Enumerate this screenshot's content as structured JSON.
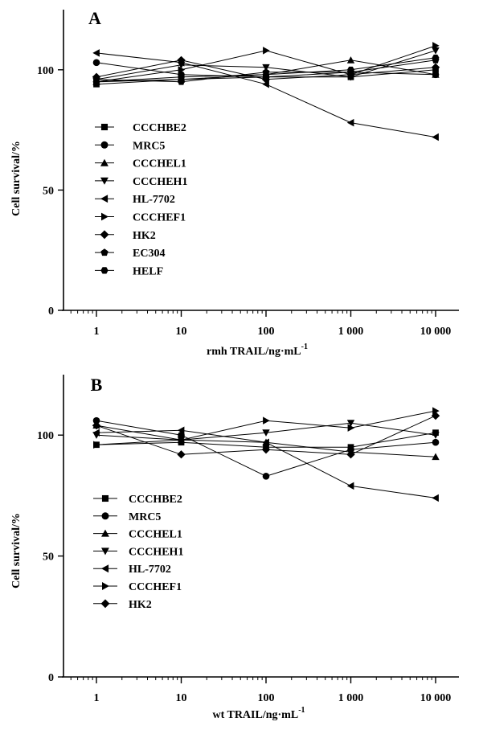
{
  "chart_data": [
    {
      "type": "line",
      "panel_label": "A",
      "xlabel": "rmh TRAIL/ng·mL",
      "xlabel_sup": "-1",
      "ylabel": "Cell survival/%",
      "xscale": "log",
      "x": [
        1,
        10,
        100,
        1000,
        10000
      ],
      "x_tick_labels": [
        "1",
        "10",
        "100",
        "1 000",
        "10 000"
      ],
      "ylim": [
        0,
        125
      ],
      "y_ticks": [
        0,
        50,
        100
      ],
      "grid": false,
      "legend_position": "left-middle",
      "series": [
        {
          "name": "CCCHBE2",
          "marker": "square",
          "values": [
            94,
            96,
            97,
            97,
            100
          ]
        },
        {
          "name": "MRC5",
          "marker": "circle",
          "values": [
            103,
            98,
            97,
            99,
            98
          ]
        },
        {
          "name": "CCCHEL1",
          "marker": "triangle-up",
          "values": [
            95,
            96,
            98,
            104,
            98
          ]
        },
        {
          "name": "CCCHEH1",
          "marker": "triangle-down",
          "values": [
            96,
            102,
            101,
            97,
            108
          ]
        },
        {
          "name": "HL-7702",
          "marker": "triangle-left",
          "values": [
            107,
            103,
            94,
            78,
            72
          ]
        },
        {
          "name": "CCCHEF1",
          "marker": "triangle-right",
          "values": [
            95,
            100,
            108,
            98,
            110
          ]
        },
        {
          "name": "HK2",
          "marker": "diamond",
          "values": [
            97,
            104,
            96,
            98,
            101
          ]
        },
        {
          "name": "EC304",
          "marker": "pentagon",
          "values": [
            96,
            95,
            99,
            99,
            104
          ]
        },
        {
          "name": "HELF",
          "marker": "hexagon",
          "values": [
            95,
            97,
            98,
            100,
            105
          ]
        }
      ]
    },
    {
      "type": "line",
      "panel_label": "B",
      "xlabel": "wt TRAIL/ng·mL",
      "xlabel_sup": "-1",
      "ylabel": "Cell survival/%",
      "xscale": "log",
      "x": [
        1,
        10,
        100,
        1000,
        10000
      ],
      "x_tick_labels": [
        "1",
        "10",
        "100",
        "1 000",
        "10 000"
      ],
      "ylim": [
        0,
        125
      ],
      "y_ticks": [
        0,
        50,
        100
      ],
      "grid": false,
      "legend_position": "left-middle",
      "series": [
        {
          "name": "CCCHBE2",
          "marker": "square",
          "values": [
            96,
            97,
            95,
            95,
            101
          ]
        },
        {
          "name": "MRC5",
          "marker": "circle",
          "values": [
            106,
            100,
            83,
            94,
            97
          ]
        },
        {
          "name": "CCCHEL1",
          "marker": "triangle-up",
          "values": [
            104,
            98,
            97,
            93,
            91
          ]
        },
        {
          "name": "CCCHEH1",
          "marker": "triangle-down",
          "values": [
            100,
            98,
            101,
            105,
            100
          ]
        },
        {
          "name": "HL-7702",
          "marker": "triangle-left",
          "values": [
            101,
            102,
            97,
            79,
            74
          ]
        },
        {
          "name": "CCCHEF1",
          "marker": "triangle-right",
          "values": [
            96,
            98,
            106,
            103,
            110
          ]
        },
        {
          "name": "HK2",
          "marker": "diamond",
          "values": [
            104,
            92,
            94,
            92,
            108
          ]
        }
      ]
    }
  ]
}
